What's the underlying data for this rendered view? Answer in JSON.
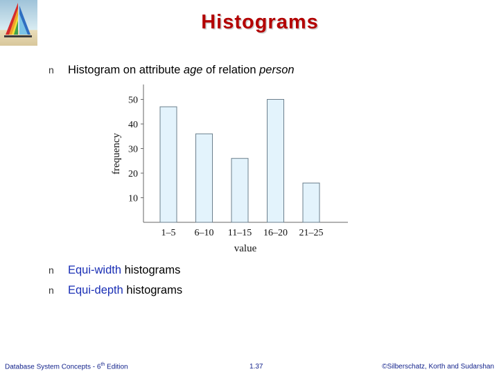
{
  "slide": {
    "title": "Histograms",
    "bullets": [
      {
        "text_before": "Histogram on attribute ",
        "em1": "age",
        "text_mid": " of relation ",
        "em2": "person"
      },
      {
        "blue": "Equi-width",
        "rest": " histograms"
      },
      {
        "blue": "Equi-depth",
        "rest": " histograms"
      }
    ],
    "footer": {
      "left_prefix": "Database System Concepts - 6",
      "left_sup": "th",
      "left_suffix": " Edition",
      "center": "1.37",
      "right": "©Silberschatz, Korth and Sudarshan"
    },
    "colors": {
      "title": "#b30000",
      "accent_text": "#1a2fb5",
      "bar_fill": "#e3f3fc",
      "bar_stroke": "#6b7f8c"
    }
  },
  "chart_data": {
    "type": "bar",
    "categories": [
      "1–5",
      "6–10",
      "11–15",
      "16–20",
      "21–25"
    ],
    "values": [
      47,
      36,
      26,
      50,
      16
    ],
    "xlabel": "value",
    "ylabel": "frequency",
    "yticks": [
      10,
      20,
      30,
      40,
      50
    ],
    "ylim": [
      0,
      55
    ],
    "grid": false,
    "legend": "none"
  }
}
